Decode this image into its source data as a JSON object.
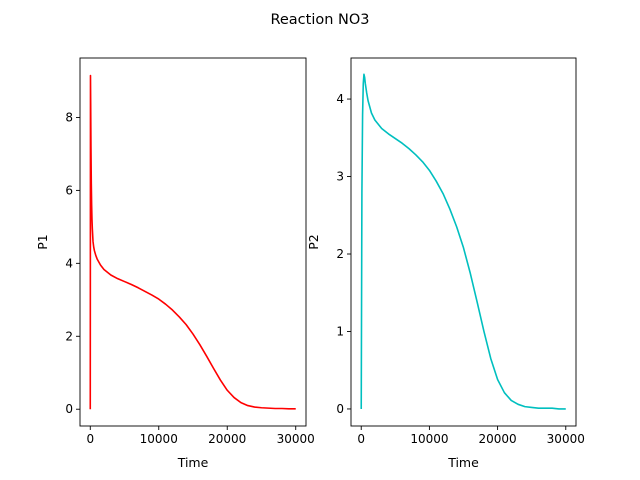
{
  "suptitle": "Reaction NO3",
  "chart_data": [
    {
      "type": "line",
      "title": "",
      "xlabel": "Time",
      "ylabel": "P1",
      "xlim": [
        -1500,
        31500
      ],
      "ylim": [
        -0.46,
        9.63
      ],
      "xticks": [
        0,
        10000,
        20000,
        30000
      ],
      "xtick_labels": [
        "0",
        "10000",
        "20000",
        "30000"
      ],
      "yticks": [
        0,
        2,
        4,
        6,
        8
      ],
      "ytick_labels": [
        "0",
        "2",
        "4",
        "6",
        "8"
      ],
      "grid": false,
      "legend": "none",
      "series": [
        {
          "color": "#ff0000",
          "x": [
            0,
            30,
            60,
            100,
            150,
            200,
            250,
            300,
            400,
            500,
            600,
            800,
            1000,
            1500,
            2000,
            3000,
            4000,
            5000,
            6000,
            7000,
            8000,
            9000,
            10000,
            11000,
            12000,
            13000,
            14000,
            15000,
            16000,
            17000,
            18000,
            19000,
            20000,
            21000,
            22000,
            23000,
            24000,
            25000,
            26000,
            27000,
            28000,
            29000,
            30000
          ],
          "y": [
            0.0,
            9.15,
            8.4,
            7.2,
            6.2,
            5.6,
            5.2,
            4.95,
            4.6,
            4.45,
            4.35,
            4.22,
            4.12,
            3.95,
            3.83,
            3.68,
            3.58,
            3.5,
            3.42,
            3.33,
            3.23,
            3.13,
            3.02,
            2.88,
            2.72,
            2.53,
            2.32,
            2.06,
            1.77,
            1.45,
            1.12,
            0.8,
            0.52,
            0.32,
            0.18,
            0.1,
            0.06,
            0.04,
            0.03,
            0.02,
            0.02,
            0.01,
            0.01
          ]
        }
      ]
    },
    {
      "type": "line",
      "title": "",
      "xlabel": "Time",
      "ylabel": "P2",
      "xlim": [
        -1500,
        31500
      ],
      "ylim": [
        -0.22,
        4.53
      ],
      "xticks": [
        0,
        10000,
        20000,
        30000
      ],
      "xtick_labels": [
        "0",
        "10000",
        "20000",
        "30000"
      ],
      "yticks": [
        0,
        1,
        2,
        3,
        4
      ],
      "ytick_labels": [
        "0",
        "1",
        "2",
        "3",
        "4"
      ],
      "grid": false,
      "legend": "none",
      "series": [
        {
          "color": "#00bfbf",
          "x": [
            0,
            100,
            200,
            300,
            400,
            500,
            600,
            800,
            1000,
            1500,
            2000,
            3000,
            4000,
            5000,
            6000,
            7000,
            8000,
            9000,
            10000,
            11000,
            12000,
            13000,
            14000,
            15000,
            16000,
            17000,
            18000,
            19000,
            20000,
            21000,
            22000,
            23000,
            24000,
            25000,
            26000,
            27000,
            28000,
            29000,
            30000
          ],
          "y": [
            0.0,
            2.8,
            3.8,
            4.2,
            4.32,
            4.28,
            4.2,
            4.08,
            3.98,
            3.82,
            3.73,
            3.62,
            3.55,
            3.49,
            3.43,
            3.36,
            3.28,
            3.19,
            3.08,
            2.94,
            2.78,
            2.58,
            2.35,
            2.08,
            1.75,
            1.38,
            1.0,
            0.65,
            0.38,
            0.21,
            0.11,
            0.06,
            0.03,
            0.02,
            0.01,
            0.01,
            0.01,
            0.0,
            0.0
          ]
        }
      ]
    }
  ]
}
